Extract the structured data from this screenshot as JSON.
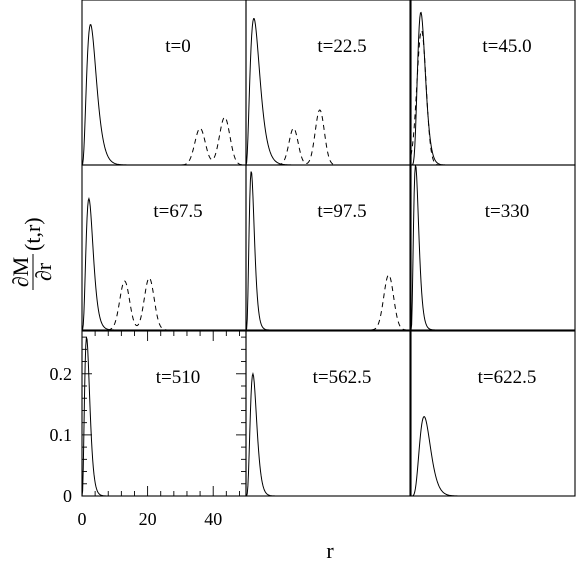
{
  "chart_data": {
    "type": "line",
    "layout": "3x3 grid of panels with shared axes",
    "xlabel": "r",
    "ylabel": "∂M/∂r(t,r)",
    "ylabel_parts": {
      "num": "∂M",
      "den": "∂r",
      "args": "(t,r)"
    },
    "xlim": [
      0,
      50
    ],
    "ylim": [
      0,
      0.27
    ],
    "xticks": [
      0,
      20,
      40
    ],
    "yticks": [
      0,
      0.1,
      0.2
    ],
    "xtick_labels": [
      "0",
      "20",
      "40"
    ],
    "ytick_labels": [
      "0",
      "0.1",
      "0.2"
    ],
    "line_styles": [
      "solid",
      "dashed"
    ],
    "panels": [
      {
        "title": "t=0",
        "solid": {
          "peak_r": 2.6,
          "peak": 0.23,
          "spread": 1.5
        },
        "dashed": [
          {
            "r": 36.0,
            "h": 0.06,
            "w": 1.6
          },
          {
            "r": 43.5,
            "h": 0.078,
            "w": 1.6
          }
        ]
      },
      {
        "title": "t=22.5",
        "solid": {
          "peak_r": 2.4,
          "peak": 0.24,
          "spread": 1.5
        },
        "dashed": [
          {
            "r": 14.5,
            "h": 0.06,
            "w": 1.4
          },
          {
            "r": 22.5,
            "h": 0.09,
            "w": 1.4
          }
        ]
      },
      {
        "title": "t=45.0",
        "solid": {
          "peak_r": 3.0,
          "peak": 0.25,
          "spread": 1.2
        },
        "dashed": [
          {
            "r": 3.2,
            "h": 0.22,
            "w": 1.4
          }
        ]
      },
      {
        "title": "t=67.5",
        "solid": {
          "peak_r": 2.1,
          "peak": 0.215,
          "spread": 1.1
        },
        "dashed": [
          {
            "r": 13.0,
            "h": 0.08,
            "w": 1.5
          },
          {
            "r": 20.5,
            "h": 0.085,
            "w": 1.5
          }
        ]
      },
      {
        "title": "t=97.5",
        "solid": {
          "peak_r": 1.6,
          "peak": 0.26,
          "spread": 0.8
        },
        "dashed": [
          {
            "r": 43.5,
            "h": 0.09,
            "w": 1.5
          }
        ]
      },
      {
        "title": "t=330",
        "solid": {
          "peak_r": 1.4,
          "peak": 0.27,
          "spread": 0.8
        },
        "dashed": []
      },
      {
        "title": "t=510",
        "solid": {
          "peak_r": 1.4,
          "peak": 0.26,
          "spread": 0.8
        },
        "dashed": []
      },
      {
        "title": "t=562.5",
        "solid": {
          "peak_r": 2.1,
          "peak": 0.2,
          "spread": 1.0
        },
        "dashed": []
      },
      {
        "title": "t=622.5",
        "solid": {
          "peak_r": 4.0,
          "peak": 0.13,
          "spread": 1.7
        },
        "dashed": []
      }
    ]
  }
}
